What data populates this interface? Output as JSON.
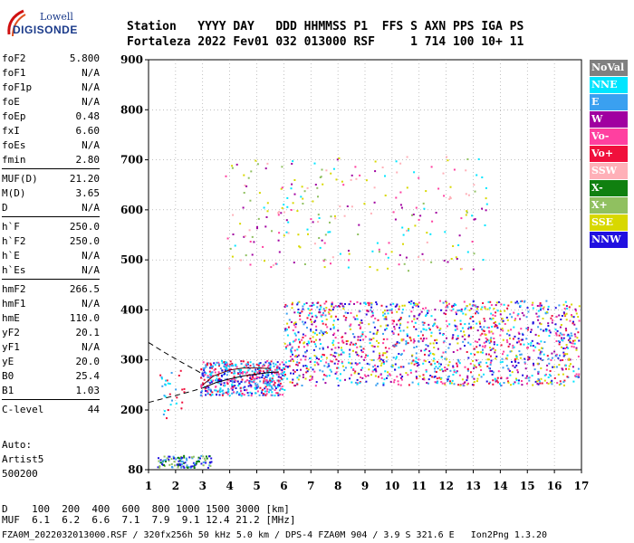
{
  "header": {
    "line1": "Station   YYYY DAY   DDD HHMMSS P1  FFS S AXN PPS IGA PS",
    "line2": "Fortaleza 2022 Fev01 032 013000 RSF     1 714 100 10+ 11"
  },
  "logo": {
    "brand": "Lowell",
    "product": "DIGISONDE"
  },
  "params": [
    {
      "name": "foF2",
      "value": "5.800"
    },
    {
      "name": "foF1",
      "value": "N/A"
    },
    {
      "name": "foF1p",
      "value": "N/A"
    },
    {
      "name": "foE",
      "value": "N/A"
    },
    {
      "name": "foEp",
      "value": "0.48"
    },
    {
      "name": "fxI",
      "value": "6.60"
    },
    {
      "name": "foEs",
      "value": "N/A"
    },
    {
      "name": "fmin",
      "value": "2.80"
    },
    {
      "name": "MUF(D)",
      "value": "21.20"
    },
    {
      "name": "M(D)",
      "value": "3.65"
    },
    {
      "name": "D",
      "value": "N/A"
    },
    {
      "name": "h`F",
      "value": "250.0"
    },
    {
      "name": "h`F2",
      "value": "250.0"
    },
    {
      "name": "h`E",
      "value": "N/A"
    },
    {
      "name": "h`Es",
      "value": "N/A"
    },
    {
      "name": "hmF2",
      "value": "266.5"
    },
    {
      "name": "hmF1",
      "value": "N/A"
    },
    {
      "name": "hmE",
      "value": "110.0"
    },
    {
      "name": "yF2",
      "value": "20.1"
    },
    {
      "name": "yF1",
      "value": "N/A"
    },
    {
      "name": "yE",
      "value": "20.0"
    },
    {
      "name": "B0",
      "value": "25.4"
    },
    {
      "name": "B1",
      "value": "1.03"
    },
    {
      "name": "C-level",
      "value": "44"
    }
  ],
  "auto": {
    "label": "Auto:",
    "software": "Artist5",
    "version": "500200"
  },
  "legend": [
    {
      "label": "NoVal",
      "color": "#808080",
      "text": "#ffffff"
    },
    {
      "label": "NNE",
      "color": "#00e5ff",
      "text": "#ffffff"
    },
    {
      "label": "E",
      "color": "#3aa0f0",
      "text": "#ffffff"
    },
    {
      "label": "W",
      "color": "#a000a0",
      "text": "#ffffff"
    },
    {
      "label": "Vo-",
      "color": "#ff40a0",
      "text": "#ffffff"
    },
    {
      "label": "Vo+",
      "color": "#f0103c",
      "text": "#ffffff"
    },
    {
      "label": "SSW",
      "color": "#ffb0b8",
      "text": "#ffffff"
    },
    {
      "label": "X-",
      "color": "#108010",
      "text": "#ffffff"
    },
    {
      "label": "X+",
      "color": "#90c060",
      "text": "#ffffff"
    },
    {
      "label": "SSE",
      "color": "#d8d800",
      "text": "#ffffff"
    },
    {
      "label": "NNW",
      "color": "#2010e0",
      "text": "#ffffff"
    }
  ],
  "bottom": {
    "d_label": "D",
    "d_values": "100  200  400  600  800 1000 1500 3000 [km]",
    "muf_label": "MUF",
    "muf_values": "6.1  6.2  6.6  7.1  7.9  9.1 12.4 21.2 [MHz]"
  },
  "footer": "FZA0M_2022032013000.RSF / 320fx256h 50 kHz 5.0 km / DPS-4 FZA0M 904 / 3.9 S 321.6 E   Ion2Png 1.3.20",
  "chart_data": {
    "type": "scatter",
    "title": "",
    "xlabel": "",
    "ylabel": "",
    "xlim": [
      1,
      17
    ],
    "ylim": [
      80,
      900
    ],
    "xticks": [
      1,
      2,
      3,
      4,
      5,
      6,
      7,
      8,
      9,
      10,
      11,
      12,
      13,
      14,
      15,
      16,
      17
    ],
    "yticks": [
      80,
      200,
      300,
      400,
      500,
      600,
      700,
      800,
      900
    ],
    "grid": "dotted",
    "legend_position": "right",
    "trace_regions": [
      {
        "name": "F-layer O trace",
        "x_range": [
          2.9,
          6.0
        ],
        "h_range": [
          230,
          300
        ]
      },
      {
        "name": "F-layer spread",
        "x_range": [
          6.0,
          16.9
        ],
        "h_range": [
          250,
          420
        ]
      },
      {
        "name": "second hop",
        "x_range": [
          3.8,
          13.6
        ],
        "h_range": [
          480,
          710
        ]
      },
      {
        "name": "low-frequency echoes",
        "x_range": [
          1.3,
          3.3
        ],
        "h_range": [
          85,
          110
        ]
      },
      {
        "name": "isolated echoes",
        "x_range": [
          1.4,
          2.4
        ],
        "h_range": [
          185,
          285
        ]
      }
    ],
    "profile_curves": [
      {
        "name": "dashed model upper",
        "points": [
          [
            1,
            335
          ],
          [
            1.5,
            318
          ],
          [
            2,
            302
          ],
          [
            2.5,
            287
          ],
          [
            3,
            272
          ]
        ]
      },
      {
        "name": "dashed model lower",
        "points": [
          [
            1,
            215
          ],
          [
            1.5,
            222
          ],
          [
            2,
            229
          ],
          [
            2.5,
            236
          ],
          [
            3,
            244
          ]
        ]
      },
      {
        "name": "solid profile",
        "points": [
          [
            3,
            244
          ],
          [
            3.5,
            255
          ],
          [
            4,
            262
          ],
          [
            4.5,
            268
          ],
          [
            5,
            272
          ],
          [
            5.5,
            275
          ],
          [
            5.8,
            276
          ]
        ]
      },
      {
        "name": "virtual height trace",
        "points": [
          [
            3,
            250
          ],
          [
            3.4,
            268
          ],
          [
            4,
            280
          ],
          [
            4.5,
            284
          ],
          [
            5,
            284
          ],
          [
            5.5,
            283
          ]
        ]
      }
    ]
  }
}
